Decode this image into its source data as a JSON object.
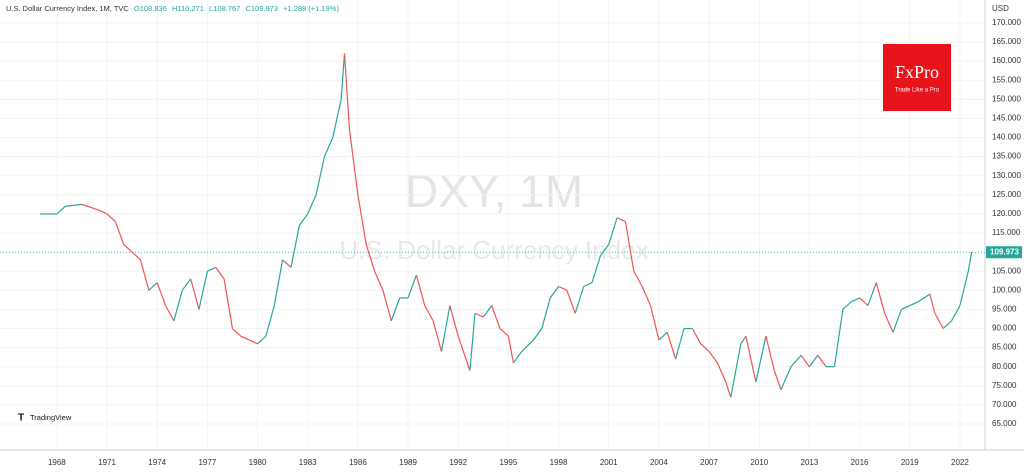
{
  "chart_data": {
    "type": "line",
    "title": "U.S. Dollar Currency Index, 1M, TVC",
    "ohlc": [
      "O108.836",
      "H110.271",
      "L108.767",
      "C109.973"
    ],
    "change": "+1.288 (+1.19%)",
    "watermark": [
      "DXY, 1M",
      "U.S. Dollar Currency Index"
    ],
    "currency": "USD",
    "last_price": 109.973,
    "logo": {
      "brand": "FxPro",
      "tagline": "Trade Like a Pro"
    },
    "attribution": "TradingView",
    "up_color": "#26a69a",
    "down_color": "#ef5350",
    "x": [
      1967.0,
      1968.0,
      1968.5,
      1969.5,
      1970.5,
      1971.0,
      1971.5,
      1972.0,
      1972.5,
      1973.0,
      1973.5,
      1974.0,
      1974.5,
      1975.0,
      1975.5,
      1976.0,
      1976.5,
      1977.0,
      1977.5,
      1978.0,
      1978.5,
      1979.0,
      1979.5,
      1980.0,
      1980.5,
      1981.0,
      1981.5,
      1982.0,
      1982.5,
      1983.0,
      1983.5,
      1984.0,
      1984.5,
      1985.0,
      1985.2,
      1985.5,
      1986.0,
      1986.5,
      1987.0,
      1987.5,
      1988.0,
      1988.5,
      1989.0,
      1989.5,
      1990.0,
      1990.5,
      1991.0,
      1991.5,
      1992.0,
      1992.7,
      1993.0,
      1993.5,
      1994.0,
      1994.5,
      1995.0,
      1995.3,
      1995.8,
      1996.5,
      1997.0,
      1997.5,
      1998.0,
      1998.5,
      1999.0,
      1999.5,
      2000.0,
      2000.5,
      2001.0,
      2001.5,
      2002.0,
      2002.5,
      2003.0,
      2003.5,
      2004.0,
      2004.5,
      2005.0,
      2005.5,
      2006.0,
      2006.5,
      2007.0,
      2007.5,
      2008.0,
      2008.3,
      2008.9,
      2009.2,
      2009.8,
      2010.4,
      2010.9,
      2011.3,
      2011.9,
      2012.5,
      2013.0,
      2013.5,
      2014.0,
      2014.5,
      2015.0,
      2015.5,
      2016.0,
      2016.5,
      2017.0,
      2017.5,
      2018.0,
      2018.5,
      2019.0,
      2019.5,
      2020.2,
      2020.5,
      2021.0,
      2021.5,
      2022.0,
      2022.5,
      2022.7
    ],
    "values": [
      120,
      120,
      122,
      122.5,
      121,
      120,
      118,
      112,
      110,
      108,
      100,
      102,
      96,
      92,
      100,
      103,
      95,
      105,
      106,
      103,
      90,
      88,
      87,
      86,
      88,
      96,
      108,
      106,
      117,
      120,
      125,
      135,
      140,
      150,
      162,
      142,
      125,
      112,
      105,
      100,
      92,
      98,
      98,
      104,
      96,
      92,
      84,
      96,
      88,
      79,
      94,
      93,
      96,
      90,
      88,
      81,
      84,
      87,
      90,
      98,
      101,
      100,
      94,
      101,
      102,
      109,
      112,
      119,
      118,
      105,
      101,
      96,
      87,
      89,
      82,
      90,
      90,
      86,
      84,
      81,
      76,
      72,
      86,
      88,
      76,
      88,
      79,
      74,
      80,
      83,
      80,
      83,
      80,
      80,
      95,
      97,
      98,
      96,
      102,
      94,
      89,
      95,
      96,
      97,
      99,
      94,
      90,
      92,
      96,
      105,
      110
    ],
    "xlim": [
      1964.6,
      2023.5
    ],
    "xticks": [
      1968,
      1971,
      1974,
      1977,
      1980,
      1983,
      1986,
      1989,
      1992,
      1995,
      1998,
      2001,
      2004,
      2007,
      2010,
      2013,
      2016,
      2019,
      2022
    ],
    "ylim": [
      58.2,
      176
    ],
    "yticks": [
      {
        "value": 65,
        "label": "65.000"
      },
      {
        "value": 70,
        "label": "70.000"
      },
      {
        "value": 75,
        "label": "75.000"
      },
      {
        "value": 80,
        "label": "80.000"
      },
      {
        "value": 85,
        "label": "85.000"
      },
      {
        "value": 90,
        "label": "90.000"
      },
      {
        "value": 95,
        "label": "95.000"
      },
      {
        "value": 100,
        "label": "100.000"
      },
      {
        "value": 105,
        "label": "105.000"
      },
      {
        "value": 110,
        "label": "110.000"
      },
      {
        "value": 115,
        "label": "115.000"
      },
      {
        "value": 120,
        "label": "120.000"
      },
      {
        "value": 125,
        "label": "125.000"
      },
      {
        "value": 130,
        "label": "130.000"
      },
      {
        "value": 135,
        "label": "135.000"
      },
      {
        "value": 140,
        "label": "140.000"
      },
      {
        "value": 145,
        "label": "145.000"
      },
      {
        "value": 150,
        "label": "150.000"
      },
      {
        "value": 155,
        "label": "155.000"
      },
      {
        "value": 160,
        "label": "160.000"
      },
      {
        "value": 165,
        "label": "165.000"
      },
      {
        "value": 170,
        "label": "170.000"
      }
    ],
    "grid": true
  }
}
